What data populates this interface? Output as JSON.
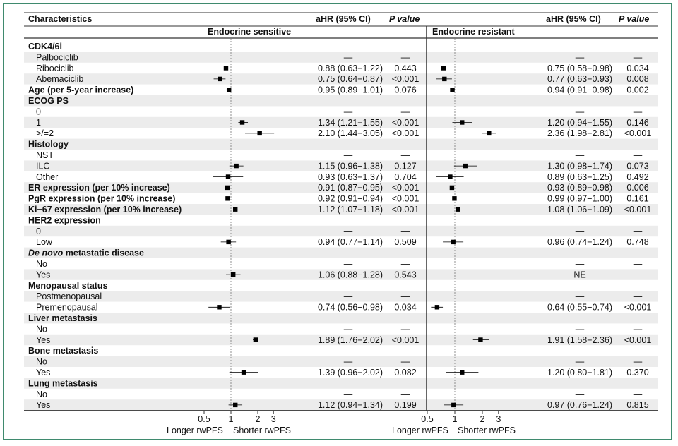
{
  "colors": {
    "frame": "#3f8a6e",
    "stripe": "#ececec",
    "mark": "#000000",
    "ci": "#000000"
  },
  "header": {
    "characteristics": "Characteristics",
    "ahr_left": "aHR (95% CI)",
    "p_left": "P value",
    "ahr_right": "aHR (95%  CI)",
    "p_right": "P value"
  },
  "panels": {
    "left": {
      "title": "Endocrine sensitive",
      "axis_left_label": "Longer rwPFS",
      "axis_right_label": "Shorter rwPFS"
    },
    "right": {
      "title": "Endocrine resistant",
      "axis_left_label": "Longer rwPFS",
      "axis_right_label": "Shorter rwPFS"
    }
  },
  "chart_data": {
    "type": "forest",
    "x_scale": "log",
    "reference_line": 1,
    "xticks": [
      0.5,
      1,
      2,
      3
    ],
    "xtick_labels": [
      "0.5",
      "1",
      "2",
      "3"
    ],
    "ref_marker": "—",
    "rows": [
      {
        "label": "CDK4/6i",
        "kind": "section"
      },
      {
        "label": "Palbociclib",
        "kind": "ref"
      },
      {
        "label": "Ribociclib",
        "kind": "item",
        "sens": {
          "hr": 0.88,
          "lo": 0.63,
          "hi": 1.22,
          "text": "0.88 (0.63−1.22)",
          "p": "0.443"
        },
        "res": {
          "hr": 0.75,
          "lo": 0.58,
          "hi": 0.98,
          "text": "0.75 (0.58−0.98)",
          "p": "0.034"
        }
      },
      {
        "label": "Abemaciclib",
        "kind": "item",
        "sens": {
          "hr": 0.75,
          "lo": 0.64,
          "hi": 0.87,
          "text": "0.75 (0.64−0.87)",
          "p": "<0.001"
        },
        "res": {
          "hr": 0.77,
          "lo": 0.63,
          "hi": 0.93,
          "text": "0.77 (0.63−0.93)",
          "p": "0.008"
        }
      },
      {
        "label": "Age (per 5-year increase)",
        "kind": "bold",
        "sens": {
          "hr": 0.95,
          "lo": 0.89,
          "hi": 1.01,
          "text": "0.95 (0.89−1.01)",
          "p": "0.076"
        },
        "res": {
          "hr": 0.94,
          "lo": 0.91,
          "hi": 0.98,
          "text": "0.94 (0.91−0.98)",
          "p": "0.002"
        }
      },
      {
        "label": "ECOG PS",
        "kind": "section"
      },
      {
        "label": "0",
        "kind": "ref"
      },
      {
        "label": "1",
        "kind": "item",
        "sens": {
          "hr": 1.34,
          "lo": 1.21,
          "hi": 1.55,
          "text": "1.34 (1.21−1.55)",
          "p": "<0.001"
        },
        "res": {
          "hr": 1.2,
          "lo": 0.94,
          "hi": 1.55,
          "text": "1.20 (0.94−1.55)",
          "p": "0.146"
        }
      },
      {
        "label": ">/=2",
        "kind": "item",
        "sens": {
          "hr": 2.1,
          "lo": 1.44,
          "hi": 3.05,
          "text": "2.10 (1.44−3.05)",
          "p": "<0.001"
        },
        "res": {
          "hr": 2.36,
          "lo": 1.98,
          "hi": 2.81,
          "text": "2.36 (1.98−2.81)",
          "p": "<0.001"
        }
      },
      {
        "label": "Histology",
        "kind": "section"
      },
      {
        "label": "NST",
        "kind": "ref"
      },
      {
        "label": "ILC",
        "kind": "item",
        "sens": {
          "hr": 1.15,
          "lo": 0.96,
          "hi": 1.38,
          "text": "1.15 (0.96−1.38)",
          "p": "0.127"
        },
        "res": {
          "hr": 1.3,
          "lo": 0.98,
          "hi": 1.74,
          "text": "1.30 (0.98−1.74)",
          "p": "0.073"
        }
      },
      {
        "label": "Other",
        "kind": "item",
        "sens": {
          "hr": 0.93,
          "lo": 0.63,
          "hi": 1.37,
          "text": "0.93 (0.63−1.37)",
          "p": "0.704"
        },
        "res": {
          "hr": 0.89,
          "lo": 0.63,
          "hi": 1.25,
          "text": "0.89 (0.63−1.25)",
          "p": "0.492"
        }
      },
      {
        "label": "ER expression (per 10% increase)",
        "kind": "bold",
        "sens": {
          "hr": 0.91,
          "lo": 0.87,
          "hi": 0.95,
          "text": "0.91 (0.87−0.95)",
          "p": "<0.001"
        },
        "res": {
          "hr": 0.93,
          "lo": 0.89,
          "hi": 0.98,
          "text": "0.93 (0.89−0.98)",
          "p": "0.006"
        }
      },
      {
        "label": "PgR expression (per 10% increase)",
        "kind": "bold",
        "sens": {
          "hr": 0.92,
          "lo": 0.91,
          "hi": 0.94,
          "text": "0.92 (0.91−0.94)",
          "p": "<0.001"
        },
        "res": {
          "hr": 0.99,
          "lo": 0.97,
          "hi": 1.0,
          "text": "0.99 (0.97−1.00)",
          "p": "0.161"
        }
      },
      {
        "label": "Ki−67 expression (per 10% increase)",
        "kind": "bold",
        "sens": {
          "hr": 1.12,
          "lo": 1.07,
          "hi": 1.18,
          "text": "1.12 (1.07−1.18)",
          "p": "<0.001"
        },
        "res": {
          "hr": 1.08,
          "lo": 1.06,
          "hi": 1.09,
          "text": "1.08 (1.06−1.09)",
          "p": "<0.001"
        }
      },
      {
        "label": "HER2 expression",
        "kind": "section"
      },
      {
        "label": "0",
        "kind": "ref"
      },
      {
        "label": "Low",
        "kind": "item",
        "sens": {
          "hr": 0.94,
          "lo": 0.77,
          "hi": 1.14,
          "text": "0.94 (0.77−1.14)",
          "p": "0.509"
        },
        "res": {
          "hr": 0.96,
          "lo": 0.74,
          "hi": 1.24,
          "text": "0.96 (0.74−1.24)",
          "p": "0.748"
        }
      },
      {
        "label": "De novo metastatic disease",
        "kind": "section",
        "italic_prefix": "De novo",
        "rest": " metastatic disease"
      },
      {
        "label": "No",
        "kind": "ref"
      },
      {
        "label": "Yes",
        "kind": "item",
        "sens": {
          "hr": 1.06,
          "lo": 0.88,
          "hi": 1.28,
          "text": "1.06 (0.88−1.28)",
          "p": "0.543"
        },
        "res": {
          "text": "NE",
          "p": ""
        }
      },
      {
        "label": "Menopausal status",
        "kind": "section"
      },
      {
        "label": "Postmenopausal",
        "kind": "ref"
      },
      {
        "label": "Premenopausal",
        "kind": "item",
        "sens": {
          "hr": 0.74,
          "lo": 0.56,
          "hi": 0.98,
          "text": "0.74 (0.56−0.98)",
          "p": "0.034"
        },
        "res": {
          "hr": 0.64,
          "lo": 0.55,
          "hi": 0.74,
          "text": "0.64 (0.55−0.74)",
          "p": "<0.001"
        }
      },
      {
        "label": "Liver metastasis",
        "kind": "section"
      },
      {
        "label": "No",
        "kind": "ref"
      },
      {
        "label": "Yes",
        "kind": "item",
        "sens": {
          "hr": 1.89,
          "lo": 1.76,
          "hi": 2.02,
          "text": "1.89 (1.76−2.02)",
          "p": "<0.001"
        },
        "res": {
          "hr": 1.91,
          "lo": 1.58,
          "hi": 2.36,
          "text": "1.91 (1.58−2.36)",
          "p": "<0.001"
        }
      },
      {
        "label": "Bone metastasis",
        "kind": "section"
      },
      {
        "label": "No",
        "kind": "ref"
      },
      {
        "label": "Yes",
        "kind": "item",
        "sens": {
          "hr": 1.39,
          "lo": 0.96,
          "hi": 2.02,
          "text": "1.39 (0.96−2.02)",
          "p": "0.082"
        },
        "res": {
          "hr": 1.2,
          "lo": 0.8,
          "hi": 1.81,
          "text": "1.20 (0.80−1.81)",
          "p": "0.370"
        }
      },
      {
        "label": "Lung metastasis",
        "kind": "section"
      },
      {
        "label": "No",
        "kind": "ref"
      },
      {
        "label": "Yes",
        "kind": "item",
        "sens": {
          "hr": 1.12,
          "lo": 0.94,
          "hi": 1.34,
          "text": "1.12 (0.94−1.34)",
          "p": "0.199"
        },
        "res": {
          "hr": 0.97,
          "lo": 0.76,
          "hi": 1.24,
          "text": "0.97 (0.76−1.24)",
          "p": "0.815"
        }
      }
    ]
  }
}
